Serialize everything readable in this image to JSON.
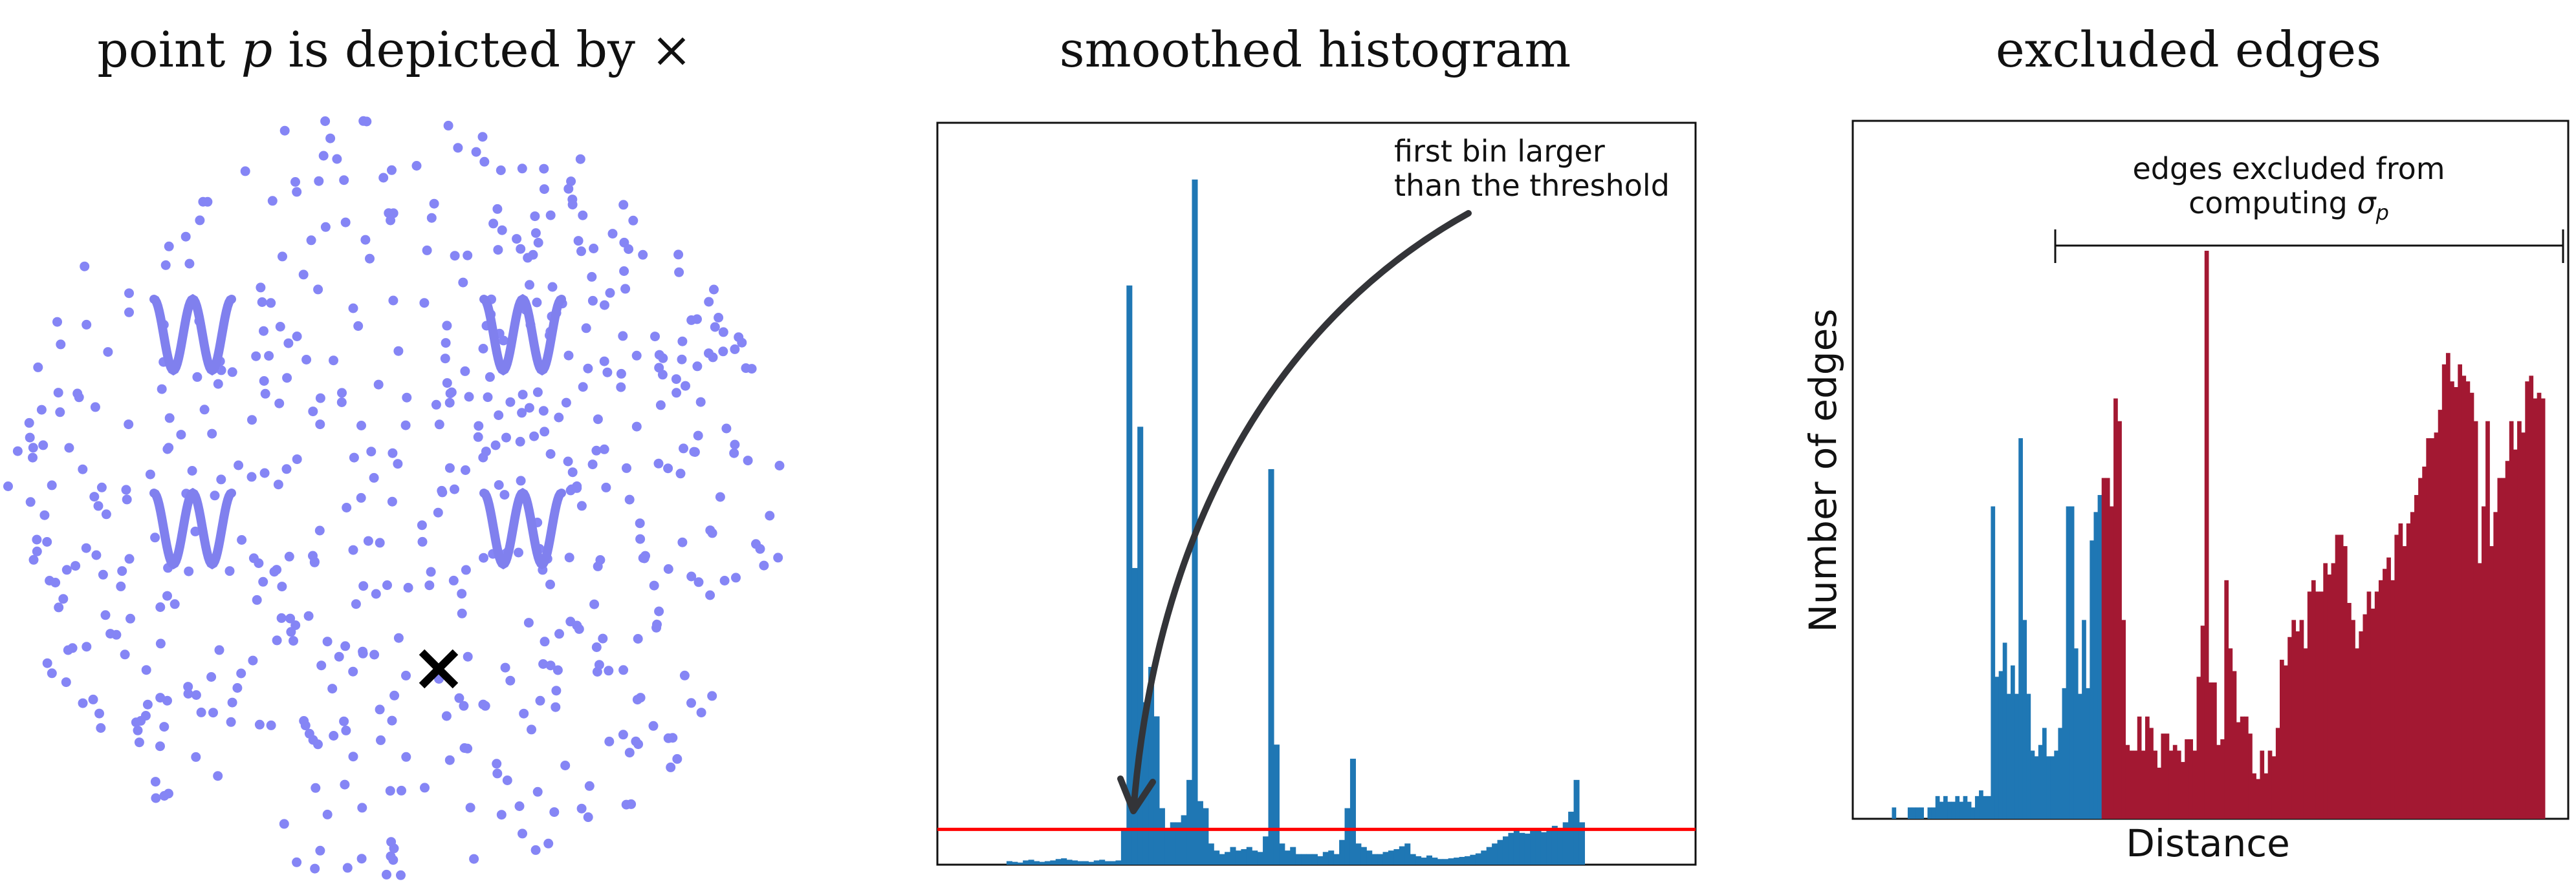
{
  "colors": {
    "scatter": "#8585f5",
    "wave": "#8080ee",
    "blue_bar": "#1f77b4",
    "red_bar": "#a31832",
    "threshold": "#ff0000",
    "arrow": "#333438",
    "marker": "#000000"
  },
  "panels": {
    "left": {
      "title_prefix": "point ",
      "title_var": "p",
      "title_suffix": " is depicted by ×"
    },
    "middle": {
      "title": "smoothed histogram",
      "annotation_line1": "first bin larger",
      "annotation_line2": "than the threshold"
    },
    "right": {
      "title": "excluded edges",
      "annotation_line1": "edges excluded from",
      "annotation_line2_prefix": "computing ",
      "annotation_sigma": "σ",
      "annotation_sub": "p",
      "xlabel": "Distance",
      "ylabel": "Number of edges"
    }
  },
  "chart_data": [
    {
      "type": "scatter",
      "title": "point p is depicted by ×",
      "description_points": "roughly uniform random points in a disc with four sine-wave clusters and one marked point",
      "marked_point": {
        "x": 0.0,
        "y": -0.2
      },
      "cluster_centers": [
        [
          -0.52,
          0.42
        ],
        [
          0.33,
          0.42
        ],
        [
          -0.52,
          -0.08
        ],
        [
          0.33,
          -0.08
        ]
      ],
      "xlim": [
        -1,
        1
      ],
      "ylim": [
        -1,
        1
      ]
    },
    {
      "type": "bar",
      "title": "smoothed histogram",
      "threshold": 5.0,
      "ylim": [
        0,
        100
      ],
      "bins": 120,
      "values": [
        0,
        0,
        0,
        0,
        0,
        0,
        0,
        0,
        0,
        0.5,
        0.4,
        0.3,
        0.6,
        0.7,
        0.5,
        0.4,
        0.5,
        0.6,
        0.8,
        0.9,
        0.7,
        0.6,
        0.5,
        0.5,
        0.4,
        0.6,
        0.7,
        0.5,
        0.5,
        0.6,
        5,
        82,
        42,
        62,
        23,
        28,
        21,
        8,
        5,
        6,
        6,
        7,
        12,
        97,
        9,
        8,
        3,
        2,
        1.5,
        1.8,
        2.5,
        2,
        2.2,
        2.5,
        2,
        1.8,
        4,
        56,
        17,
        3,
        2,
        2.5,
        1.5,
        1.5,
        1.5,
        1.5,
        1.2,
        1.8,
        2,
        1.5,
        3.5,
        8,
        15,
        3,
        2.5,
        2,
        1.5,
        1.5,
        1.8,
        2,
        2.2,
        2.6,
        3,
        1.5,
        1.2,
        1,
        1.3,
        1,
        0.8,
        0.8,
        0.9,
        1,
        1.1,
        1.2,
        1.4,
        1.6,
        2,
        2.5,
        3,
        3.5,
        4,
        4.5,
        4.8,
        4.5,
        4.4,
        4.8,
        5,
        4.6,
        4.8,
        5.5,
        5.2,
        6,
        7.5,
        12,
        6,
        0,
        0,
        0,
        0,
        0,
        0
      ]
    },
    {
      "type": "bar",
      "title": "excluded edges",
      "xlabel": "Distance",
      "ylabel": "Number of edges",
      "ylim": [
        0,
        100
      ],
      "excluded_from_bin": 28,
      "values": [
        0,
        0,
        0,
        0,
        2,
        0,
        0,
        0,
        2,
        2,
        2,
        2,
        0,
        2,
        2,
        4,
        3,
        4,
        3,
        3,
        4,
        3,
        4,
        3,
        2,
        4,
        5,
        4,
        4,
        55,
        25,
        26,
        31,
        22,
        27,
        22,
        67,
        35,
        22,
        12,
        11,
        13,
        16,
        11,
        11,
        12,
        16,
        23,
        55,
        55,
        30,
        22,
        35,
        23,
        49,
        54,
        57,
        60,
        60,
        55,
        74,
        70,
        35,
        13,
        12,
        12,
        18,
        12,
        18,
        16,
        12,
        9,
        15,
        15,
        12,
        13,
        12,
        10,
        14,
        14,
        12,
        25,
        34,
        100,
        24,
        24,
        13,
        14,
        42,
        30,
        26,
        17,
        18,
        18,
        15,
        8,
        7,
        12,
        8,
        12,
        11,
        16,
        28,
        27,
        32,
        35,
        33,
        35,
        30,
        40,
        42,
        40,
        40,
        45,
        43,
        45,
        50,
        50,
        48,
        38,
        35,
        30,
        33,
        36,
        40,
        37,
        40,
        42,
        44,
        46,
        42,
        50,
        52,
        48,
        52,
        54,
        57,
        60,
        62,
        67,
        67,
        68,
        72,
        80,
        82,
        77,
        76,
        80,
        78,
        77,
        75,
        70,
        45,
        55,
        70,
        48,
        54,
        60,
        60,
        63,
        70,
        65,
        70,
        68,
        77,
        78,
        74,
        75,
        74,
        0
      ]
    }
  ]
}
